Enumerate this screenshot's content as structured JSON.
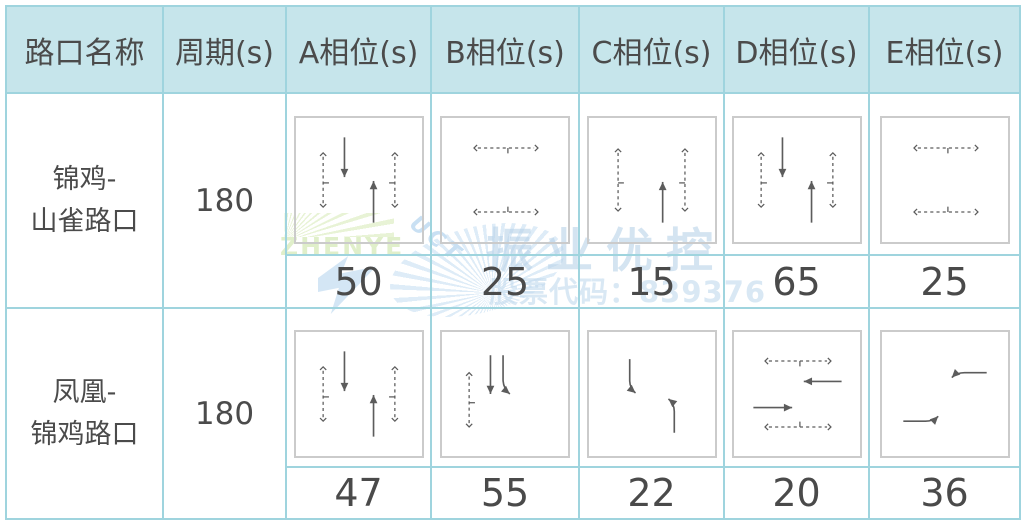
{
  "watermark": {
    "brand": "振业优控",
    "stock_label": "股票代码：839376",
    "logo_zhenye": "ZHENYE",
    "logo_uct": "UCT"
  },
  "colors": {
    "header_bg": "#c6e5eb",
    "grid_line": "#9fd4de",
    "text": "#4b4b4b",
    "arrow": "#5c5c5c",
    "diagram_box_border": "#cbcbcb",
    "watermark_blue": "#b9d3e9",
    "watermark_green": "#e0efca"
  },
  "table": {
    "headers": [
      "路口名称",
      "周期(s)",
      "A相位(s)",
      "B相位(s)",
      "C相位(s)",
      "D相位(s)",
      "E相位(s)"
    ],
    "rows": [
      {
        "name_line1": "锦鸡-",
        "name_line2": "山雀路口",
        "cycle": "180",
        "phases": [
          {
            "diagram": "ns-straight-both-ped",
            "value": "50"
          },
          {
            "diagram": "ew-ped",
            "value": "25"
          },
          {
            "diagram": "nb-straight-ped",
            "value": "15"
          },
          {
            "diagram": "ns-straight-both-ped",
            "value": "65"
          },
          {
            "diagram": "ew-ped",
            "value": "25"
          }
        ]
      },
      {
        "name_line1": "凤凰-",
        "name_line2": "锦鸡路口",
        "cycle": "180",
        "phases": [
          {
            "diagram": "ns-straight-both-ped",
            "value": "47"
          },
          {
            "diagram": "sb-straight-and-left",
            "value": "55"
          },
          {
            "diagram": "ns-protected-lefts",
            "value": "22"
          },
          {
            "diagram": "ew-straight-both-ped",
            "value": "20"
          },
          {
            "diagram": "ew-protected-lefts",
            "value": "36"
          }
        ]
      }
    ]
  }
}
